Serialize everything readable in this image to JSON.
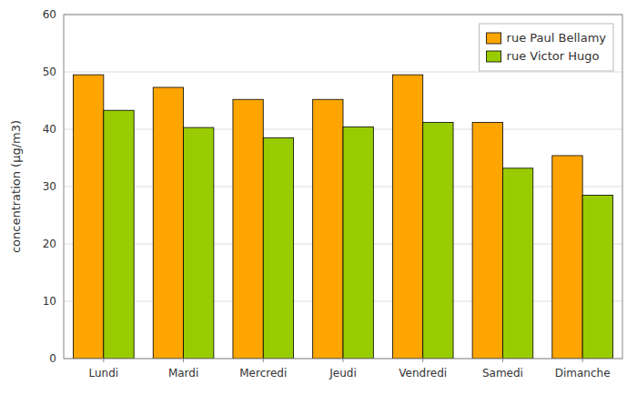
{
  "chart_data": {
    "type": "bar",
    "categories": [
      "Lundi",
      "Mardi",
      "Mercredi",
      "Jeudi",
      "Vendredi",
      "Samedi",
      "Dimanche"
    ],
    "series": [
      {
        "name": "rue Paul Bellamy",
        "color": "#FFA500",
        "values": [
          49.5,
          47.3,
          45.2,
          45.2,
          49.5,
          41.2,
          35.4
        ]
      },
      {
        "name": "rue Victor Hugo",
        "color": "#99CC00",
        "values": [
          43.3,
          40.3,
          38.5,
          40.4,
          41.2,
          33.2,
          28.5
        ]
      }
    ],
    "y_label": "concentration (µg/m3)",
    "ylim": [
      0,
      60
    ],
    "yticks": [
      0,
      10,
      20,
      30,
      40,
      50,
      60
    ],
    "grid": true,
    "legend": "upper right"
  }
}
